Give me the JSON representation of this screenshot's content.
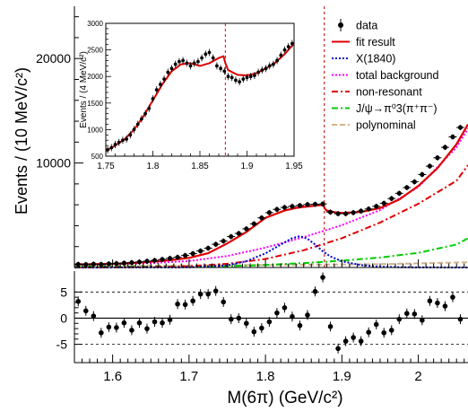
{
  "chart_data": [
    {
      "id": "main",
      "type": "line",
      "ylabel": "Events / (10 MeV/c²)",
      "xlim": [
        1.55,
        2.065
      ],
      "ylim": [
        0,
        25000
      ],
      "xticks": [
        1.6,
        1.7,
        1.8,
        1.9,
        2.0
      ],
      "xtick_labels": [
        "1.6",
        "1.7",
        "1.8",
        "1.9",
        "2"
      ],
      "yticks": [
        10000,
        20000
      ],
      "ytick_labels": [
        "10000",
        "20000"
      ],
      "threshold_line_x": 1.877,
      "legend": [
        {
          "key": "data",
          "label": "data",
          "style": "points",
          "color": "#000000"
        },
        {
          "key": "fit",
          "label": "fit result",
          "style": "solid",
          "color": "#e00000"
        },
        {
          "key": "x1840",
          "label": "X(1840)",
          "style": "dotted",
          "color": "#0000d0"
        },
        {
          "key": "totbkg",
          "label": "total background",
          "style": "dotted",
          "color": "#ff00ff"
        },
        {
          "key": "nonres",
          "label": "non-resonant",
          "style": "dashdot",
          "color": "#e00000"
        },
        {
          "key": "jpsi",
          "label": "J/ψ→π⁰3(π⁺π⁻)",
          "style": "dashdot",
          "color": "#00cc00"
        },
        {
          "key": "poly",
          "label": "polynominal",
          "style": "dashed",
          "color": "#d2b48c"
        }
      ],
      "series": [
        {
          "key": "data",
          "x": [
            1.555,
            1.565,
            1.575,
            1.585,
            1.595,
            1.605,
            1.615,
            1.625,
            1.635,
            1.645,
            1.655,
            1.665,
            1.675,
            1.685,
            1.695,
            1.705,
            1.715,
            1.725,
            1.735,
            1.745,
            1.755,
            1.765,
            1.775,
            1.785,
            1.795,
            1.805,
            1.815,
            1.825,
            1.835,
            1.845,
            1.855,
            1.865,
            1.875,
            1.885,
            1.895,
            1.905,
            1.915,
            1.925,
            1.935,
            1.945,
            1.955,
            1.965,
            1.975,
            1.985,
            1.995,
            2.005,
            2.015,
            2.025,
            2.035,
            2.045,
            2.055
          ],
          "y": [
            300,
            280,
            320,
            300,
            350,
            380,
            420,
            470,
            530,
            600,
            680,
            770,
            870,
            980,
            1150,
            1330,
            1580,
            1850,
            2220,
            2530,
            2960,
            3260,
            3700,
            4180,
            4750,
            5250,
            5560,
            5750,
            5850,
            5930,
            6030,
            6050,
            6080,
            5300,
            5150,
            5150,
            5250,
            5400,
            5600,
            5850,
            6150,
            6600,
            7100,
            7650,
            8200,
            8900,
            9700,
            10500,
            11500,
            12500,
            13400
          ]
        },
        {
          "key": "fit",
          "x": [
            1.55,
            1.575,
            1.6,
            1.625,
            1.65,
            1.675,
            1.7,
            1.725,
            1.75,
            1.775,
            1.8,
            1.825,
            1.84,
            1.85,
            1.86,
            1.87,
            1.8765,
            1.877,
            1.88,
            1.89,
            1.9,
            1.925,
            1.95,
            1.975,
            2.0,
            2.025,
            2.05,
            2.065
          ],
          "y": [
            300,
            310,
            350,
            430,
            540,
            700,
            920,
            1370,
            2300,
            3400,
            4750,
            5450,
            5700,
            5800,
            5870,
            5950,
            6000,
            5700,
            5450,
            5300,
            5220,
            5320,
            5700,
            6500,
            7800,
            9500,
            11800,
            13700
          ]
        },
        {
          "key": "x1840",
          "x": [
            1.55,
            1.7,
            1.75,
            1.775,
            1.8,
            1.82,
            1.835,
            1.845,
            1.855,
            1.865,
            1.875,
            1.885,
            1.9,
            1.925,
            1.95,
            1.975,
            2.0,
            2.065
          ],
          "y": [
            0,
            20,
            200,
            600,
            1350,
            2200,
            2800,
            3000,
            2750,
            2200,
            1550,
            1050,
            600,
            220,
            80,
            30,
            10,
            0
          ]
        },
        {
          "key": "totbkg",
          "x": [
            1.55,
            1.6,
            1.65,
            1.7,
            1.75,
            1.8,
            1.85,
            1.9,
            1.95,
            2.0,
            2.05,
            2.065
          ],
          "y": [
            280,
            320,
            420,
            620,
            1100,
            1900,
            2900,
            4050,
            5500,
            7700,
            11500,
            13300
          ]
        },
        {
          "key": "nonres",
          "x": [
            1.55,
            1.6,
            1.65,
            1.7,
            1.75,
            1.8,
            1.85,
            1.9,
            1.95,
            2.0,
            2.05,
            2.065
          ],
          "y": [
            0,
            10,
            40,
            120,
            350,
            820,
            1650,
            2800,
            4300,
            6100,
            8300,
            9800
          ]
        },
        {
          "key": "jpsi",
          "x": [
            1.55,
            1.75,
            1.8,
            1.85,
            1.9,
            1.95,
            2.0,
            2.05,
            2.065
          ],
          "y": [
            80,
            120,
            240,
            420,
            650,
            950,
            1400,
            2200,
            2800
          ]
        },
        {
          "key": "poly",
          "x": [
            1.55,
            1.65,
            1.75,
            1.85,
            1.95,
            2.065
          ],
          "y": [
            160,
            180,
            210,
            260,
            320,
            500
          ]
        }
      ]
    },
    {
      "id": "inset",
      "type": "line",
      "ylabel": "Events / (4 MeV/c²)",
      "xlim": [
        1.75,
        1.95
      ],
      "ylim": [
        500,
        3000
      ],
      "xticks": [
        1.75,
        1.8,
        1.85,
        1.9,
        1.95
      ],
      "xtick_labels": [
        "1.75",
        "1.8",
        "1.85",
        "1.9",
        "1.95"
      ],
      "yticks": [
        500,
        1000,
        1500,
        2000,
        2500,
        3000
      ],
      "ytick_labels": [
        "500",
        "1000",
        "1500",
        "2000",
        "2500",
        "3000"
      ],
      "threshold_line_x": 1.877,
      "series": [
        {
          "key": "data",
          "x": [
            1.752,
            1.756,
            1.76,
            1.764,
            1.768,
            1.772,
            1.776,
            1.78,
            1.784,
            1.788,
            1.792,
            1.796,
            1.8,
            1.804,
            1.808,
            1.812,
            1.816,
            1.82,
            1.824,
            1.828,
            1.832,
            1.836,
            1.84,
            1.844,
            1.848,
            1.852,
            1.856,
            1.86,
            1.864,
            1.868,
            1.872,
            1.876,
            1.88,
            1.884,
            1.888,
            1.892,
            1.896,
            1.9,
            1.904,
            1.908,
            1.912,
            1.916,
            1.92,
            1.924,
            1.928,
            1.932,
            1.936,
            1.94,
            1.944,
            1.948
          ],
          "y": [
            620,
            660,
            720,
            760,
            800,
            820,
            900,
            1000,
            1100,
            1200,
            1300,
            1400,
            1580,
            1750,
            1850,
            1950,
            2080,
            2150,
            2230,
            2280,
            2300,
            2250,
            2200,
            2250,
            2280,
            2350,
            2420,
            2450,
            2350,
            2200,
            2150,
            2100,
            2000,
            1980,
            1930,
            1900,
            1950,
            1980,
            2000,
            2020,
            2080,
            2120,
            2150,
            2200,
            2230,
            2300,
            2400,
            2500,
            2560,
            2620
          ]
        },
        {
          "key": "fit",
          "x": [
            1.75,
            1.76,
            1.77,
            1.78,
            1.79,
            1.8,
            1.81,
            1.82,
            1.83,
            1.84,
            1.85,
            1.86,
            1.87,
            1.875,
            1.877,
            1.88,
            1.89,
            1.9,
            1.91,
            1.92,
            1.93,
            1.94,
            1.95
          ],
          "y": [
            600,
            700,
            820,
            1000,
            1250,
            1550,
            1850,
            2100,
            2230,
            2250,
            2200,
            2250,
            2350,
            2380,
            2250,
            2120,
            2030,
            2020,
            2060,
            2150,
            2260,
            2420,
            2620
          ]
        }
      ]
    },
    {
      "id": "pull",
      "type": "scatter",
      "xlabel": "M(6π) (GeV/c²)",
      "xlim": [
        1.55,
        2.065
      ],
      "ylim": [
        -8.5,
        9
      ],
      "xticks": [
        1.6,
        1.7,
        1.8,
        1.9,
        2.0
      ],
      "xtick_labels": [
        "1.6",
        "1.7",
        "1.8",
        "1.9",
        "2"
      ],
      "yticks": [
        -5,
        0,
        5
      ],
      "ytick_labels": [
        "-5",
        "0",
        "5"
      ],
      "reference_lines": [
        -5,
        0,
        5
      ],
      "series": [
        {
          "key": "pull",
          "x": [
            1.555,
            1.565,
            1.575,
            1.585,
            1.595,
            1.605,
            1.615,
            1.625,
            1.635,
            1.645,
            1.655,
            1.665,
            1.675,
            1.685,
            1.695,
            1.705,
            1.715,
            1.725,
            1.735,
            1.745,
            1.755,
            1.765,
            1.775,
            1.785,
            1.795,
            1.805,
            1.815,
            1.825,
            1.835,
            1.845,
            1.855,
            1.865,
            1.875,
            1.885,
            1.895,
            1.905,
            1.915,
            1.925,
            1.935,
            1.945,
            1.955,
            1.965,
            1.975,
            1.985,
            1.995,
            2.005,
            2.015,
            2.025,
            2.035,
            2.045,
            2.055
          ],
          "y": [
            3.2,
            1.4,
            0.4,
            -2.8,
            -1.7,
            -1.8,
            -0.9,
            -2.3,
            -0.9,
            -2.0,
            -0.7,
            -0.9,
            -0.3,
            2.7,
            2.6,
            3.3,
            4.6,
            4.6,
            5.2,
            3.1,
            -0.2,
            0.0,
            -1.0,
            -2.6,
            -1.9,
            -0.7,
            1.0,
            2.0,
            0.3,
            -1.4,
            0.6,
            5.1,
            7.8,
            -1.6,
            -5.8,
            -4.4,
            -3.7,
            -4.4,
            -2.7,
            -1.2,
            -2.8,
            -2.3,
            -0.2,
            0.9,
            0.8,
            -0.4,
            3.3,
            2.9,
            2.3,
            4.0,
            -0.2
          ]
        }
      ]
    }
  ]
}
